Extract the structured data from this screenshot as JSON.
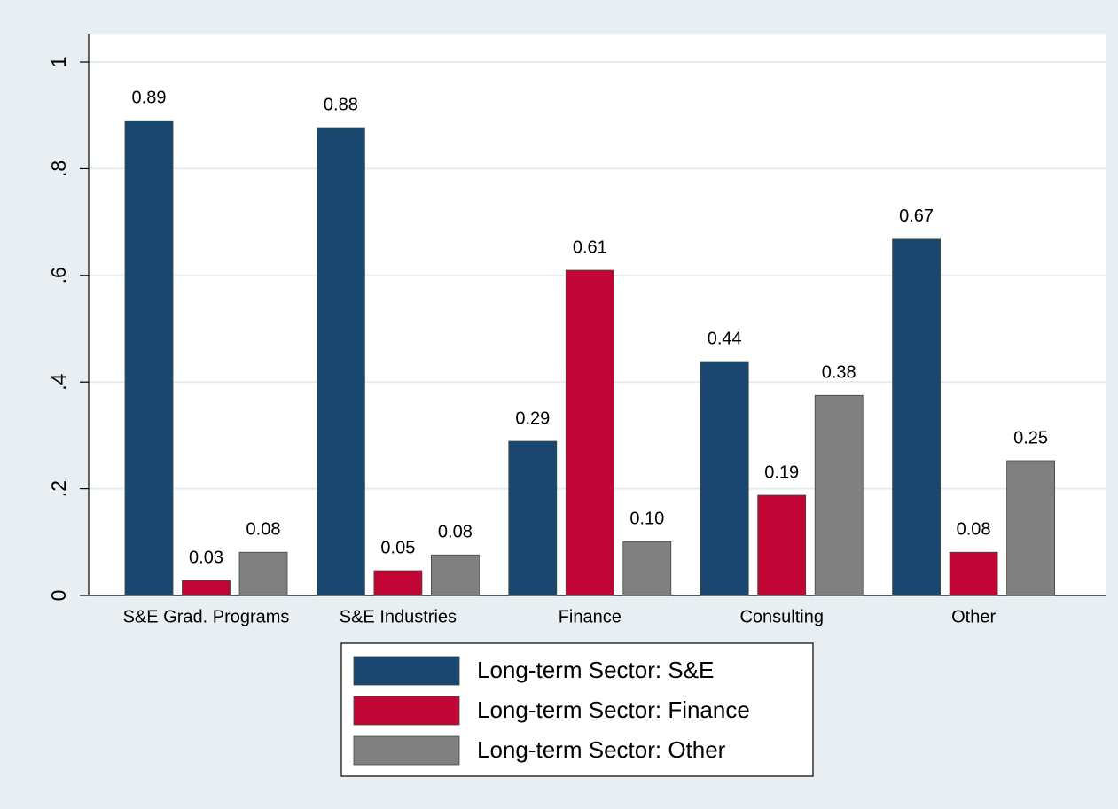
{
  "chart_data": {
    "type": "bar",
    "categories": [
      "S&E Grad. Programs",
      "S&E Industries",
      "Finance",
      "Consulting",
      "Other"
    ],
    "series": [
      {
        "name": "Long-term Sector: S&E",
        "color": "#1a476f",
        "values": [
          0.89,
          0.877,
          0.289,
          0.4385,
          0.668
        ],
        "value_labels": [
          "0.89",
          "0.88",
          "0.29",
          "0.44",
          "0.67"
        ]
      },
      {
        "name": "Long-term Sector: Finance",
        "color": "#c10534",
        "values": [
          0.028,
          0.0465,
          0.6096,
          0.1877,
          0.081
        ],
        "value_labels": [
          "0.03",
          "0.05",
          "0.61",
          "0.19",
          "0.08"
        ]
      },
      {
        "name": "Long-term Sector: Other",
        "color": "#808080",
        "values": [
          0.081,
          0.076,
          0.101,
          0.375,
          0.2525
        ],
        "value_labels": [
          "0.08",
          "0.08",
          "0.10",
          "0.38",
          "0.25"
        ]
      }
    ],
    "ylim": [
      0,
      1.0532
    ],
    "yticks": [
      0,
      {
        "value": 0.2,
        "label": ".2"
      },
      {
        "value": 0.4,
        "label": ".4"
      },
      {
        "value": 0.6,
        "label": ".6"
      },
      {
        "value": 0.8,
        "label": ".8"
      },
      1
    ],
    "grid": true,
    "legend": "bottom"
  }
}
